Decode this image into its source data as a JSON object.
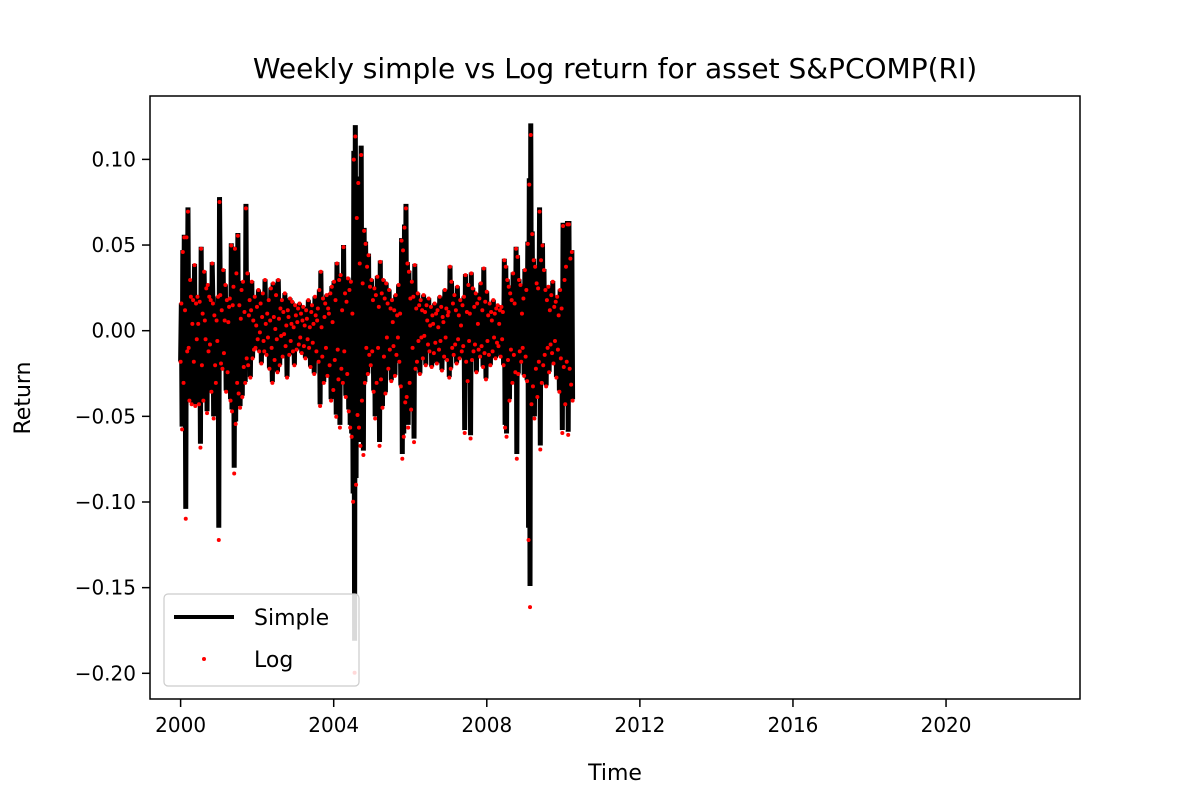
{
  "chart_data": {
    "type": "line",
    "title": "Weekly simple vs Log return for asset S&PCOMP(RI)",
    "xlabel": "Time",
    "ylabel": "Return",
    "xlim": [
      1999.2,
      2023.5
    ],
    "ylim": [
      -0.215,
      0.137
    ],
    "x_ticks": [
      2000,
      2004,
      2008,
      2012,
      2016,
      2020
    ],
    "x_tick_labels": [
      "2000",
      "2004",
      "2008",
      "2012",
      "2016",
      "2020"
    ],
    "y_ticks": [
      0.1,
      0.05,
      0.0,
      -0.05,
      -0.1,
      -0.15,
      -0.2
    ],
    "y_tick_labels": [
      "0.10",
      "0.05",
      "0.00",
      "−0.05",
      "−0.10",
      "−0.15",
      "−0.20"
    ],
    "grid": false,
    "legend_position": "lower-left",
    "series": [
      {
        "name": "Simple",
        "style": "line",
        "color": "#000000"
      },
      {
        "name": "Log",
        "style": "points",
        "color": "#ff0000"
      }
    ],
    "weekly_returns": {
      "start_year": 2000.0,
      "step_years": 0.01918,
      "simple": [
        -0.018,
        0.016,
        -0.056,
        0.047,
        -0.03,
        0.056,
        0.012,
        -0.104,
        0.056,
        -0.012,
        0.072,
        -0.01,
        -0.04,
        0.03,
        0.02,
        -0.042,
        0.004,
        0.018,
        -0.018,
        0.039,
        -0.043,
        0.016,
        -0.005,
        0.02,
        0.004,
        -0.042,
        0.017,
        -0.066,
        0.049,
        -0.02,
        0.01,
        -0.04,
        0.035,
        0.006,
        -0.005,
        0.025,
        -0.047,
        0.027,
        -0.012,
        0.02,
        -0.008,
        0.018,
        -0.035,
        0.04,
        0.016,
        -0.05,
        0.009,
        -0.02,
        -0.03,
        0.006,
        -0.006,
        0.02,
        -0.115,
        0.078,
        0.021,
        -0.019,
        0.012,
        -0.022,
        0.036,
        -0.013,
        0.006,
        0.027,
        -0.035,
        0.018,
        -0.024,
        0.005,
        0.014,
        0.019,
        -0.04,
        0.051,
        -0.046,
        0.015,
        0.026,
        -0.08,
        0.049,
        -0.053,
        0.034,
        -0.03,
        0.057,
        -0.036,
        0.015,
        -0.044,
        0.007,
        0.024,
        -0.038,
        0.029,
        -0.021,
        0.011,
        -0.03,
        0.074,
        -0.016,
        0.034,
        -0.02,
        0.009,
        0.018,
        -0.027,
        0.012,
        0.029,
        -0.016,
        0.006,
        -0.011,
        0.02,
        -0.01,
        0.003,
        0.014,
        -0.005,
        0.024,
        -0.012,
        -0.001,
        0.016,
        -0.019,
        0.008,
        0.022,
        -0.006,
        -0.012,
        0.03,
        0.004,
        -0.014,
        0.01,
        -0.004,
        0.018,
        -0.022,
        0.006,
        0.025,
        -0.01,
        -0.03,
        0.028,
        0.008,
        -0.017,
        0.001,
        0.021,
        -0.005,
        -0.024,
        0.03,
        0.007,
        -0.02,
        0.013,
        -0.003,
        0.018,
        -0.015,
        0.011,
        -0.002,
        0.022,
        -0.009,
        0.003,
        -0.027,
        0.012,
        0.008,
        -0.014,
        0.019,
        -0.006,
        0.004,
        0.017,
        -0.012,
        0.002,
        -0.02,
        0.015,
        0.009,
        -0.011,
        0.005,
        0.013,
        -0.008,
        0.016,
        -0.004,
        0.01,
        -0.013,
        0.006,
        0.014,
        -0.009,
        0.003,
        -0.016,
        0.012,
        0.007,
        -0.005,
        0.018,
        -0.01,
        0.002,
        -0.021,
        0.011,
        0.015,
        -0.007,
        0.004,
        -0.025,
        0.02,
        0.009,
        -0.012,
        0.006,
        0.013,
        -0.018,
        0.024,
        -0.043,
        0.035,
        0.002,
        -0.015,
        0.019,
        -0.03,
        0.008,
        0.016,
        -0.01,
        0.021,
        -0.026,
        0.013,
        0.01,
        -0.02,
        0.022,
        -0.04,
        0.026,
        0.005,
        -0.034,
        0.029,
        -0.017,
        0.018,
        -0.049,
        0.04,
        -0.011,
        -0.028,
        0.03,
        -0.055,
        0.033,
        -0.022,
        0.012,
        -0.03,
        0.05,
        -0.012,
        0.022,
        -0.038,
        0.017,
        -0.025,
        0.031,
        -0.046,
        0.024,
        -0.055,
        0.029,
        -0.06,
        0.01,
        -0.095,
        0.105,
        -0.181,
        0.12,
        -0.086,
        0.068,
        -0.048,
        0.09,
        -0.055,
        0.04,
        -0.065,
        0.108,
        -0.04,
        0.028,
        -0.07,
        0.06,
        -0.03,
        0.052,
        -0.01,
        0.038,
        -0.025,
        0.045,
        -0.014,
        0.026,
        -0.02,
        0.03,
        -0.012,
        0.018,
        -0.035,
        0.025,
        -0.05,
        0.021,
        -0.03,
        0.032,
        -0.01,
        0.014,
        -0.065,
        0.041,
        -0.028,
        0.022,
        -0.044,
        0.03,
        -0.015,
        0.019,
        -0.036,
        0.028,
        -0.004,
        0.016,
        -0.022,
        0.024,
        -0.011,
        0.013,
        -0.029,
        0.018,
        0.005,
        -0.009,
        0.012,
        -0.026,
        0.021,
        -0.014,
        0.009,
        -0.004,
        0.027,
        -0.018,
        0.01,
        -0.032,
        0.054,
        -0.072,
        0.048,
        -0.06,
        0.062,
        -0.041,
        0.074,
        -0.038,
        0.04,
        -0.055,
        0.035,
        -0.03,
        0.019,
        -0.045,
        0.029,
        -0.01,
        0.02,
        -0.063,
        0.039,
        -0.022,
        0.013,
        -0.018,
        0.022,
        -0.006,
        0.015,
        -0.025,
        0.018,
        -0.004,
        0.012,
        -0.016,
        0.021,
        -0.003,
        0.011,
        -0.02,
        0.015,
        0.006,
        -0.008,
        0.019,
        -0.012,
        0.003,
        0.014,
        -0.021,
        0.009,
        0.004,
        -0.013,
        0.016,
        -0.007,
        0.01,
        -0.019,
        0.012,
        0.002,
        -0.011,
        0.02,
        -0.006,
        0.014,
        -0.023,
        0.008,
        0.005,
        -0.015,
        0.024,
        -0.004,
        0.013,
        -0.017,
        0.009,
        0.011,
        -0.027,
        0.038,
        -0.022,
        0.029,
        -0.01,
        0.016,
        -0.014,
        0.021,
        -0.008,
        0.012,
        -0.019,
        0.026,
        -0.005,
        0.009,
        -0.016,
        0.018,
        0.003,
        -0.012,
        0.015,
        -0.009,
        0.02,
        -0.058,
        0.033,
        -0.018,
        0.011,
        -0.029,
        0.027,
        -0.006,
        0.01,
        -0.061,
        0.034,
        -0.017,
        0.025,
        -0.012,
        0.014,
        -0.008,
        0.022,
        -0.024,
        0.016,
        0.004,
        -0.011,
        0.019,
        -0.015,
        0.028,
        -0.009,
        0.012,
        -0.021,
        0.037,
        -0.013,
        0.017,
        -0.028,
        0.023,
        -0.006,
        0.009,
        -0.014,
        0.016,
        -0.02,
        0.011,
        0.006,
        -0.012,
        0.018,
        -0.004,
        0.01,
        -0.016,
        0.013,
        -0.007,
        0.015,
        -0.009,
        0.004,
        0.012,
        -0.015,
        0.014,
        -0.005,
        0.011,
        -0.02,
        0.042,
        -0.055,
        0.038,
        -0.06,
        0.03,
        -0.017,
        0.026,
        -0.04,
        0.022,
        -0.011,
        0.018,
        -0.03,
        0.034,
        -0.014,
        0.016,
        -0.024,
        0.049,
        -0.072,
        0.044,
        -0.025,
        0.03,
        -0.012,
        0.027,
        -0.018,
        0.01,
        -0.01,
        0.019,
        -0.026,
        0.036,
        -0.015,
        0.024,
        -0.029,
        0.052,
        -0.115,
        0.089,
        -0.149,
        0.121,
        -0.042,
        0.058,
        -0.032,
        0.042,
        -0.05,
        0.038,
        -0.022,
        0.028,
        -0.038,
        0.025,
        -0.018,
        0.072,
        -0.067,
        0.042,
        -0.03,
        0.051,
        -0.02,
        0.036,
        -0.014,
        0.024,
        -0.032,
        0.018,
        -0.01,
        0.026,
        -0.024,
        0.012,
        -0.008,
        0.021,
        -0.013,
        0.029,
        -0.019,
        0.014,
        -0.006,
        0.017,
        -0.027,
        0.02,
        -0.011,
        0.009,
        -0.035,
        0.024,
        -0.016,
        0.013,
        -0.058,
        0.063,
        -0.021,
        0.03,
        -0.042,
        0.038,
        -0.018,
        0.064,
        -0.059,
        0.064,
        -0.022,
        0.043,
        -0.031,
        0.047,
        -0.04
      ]
    }
  }
}
